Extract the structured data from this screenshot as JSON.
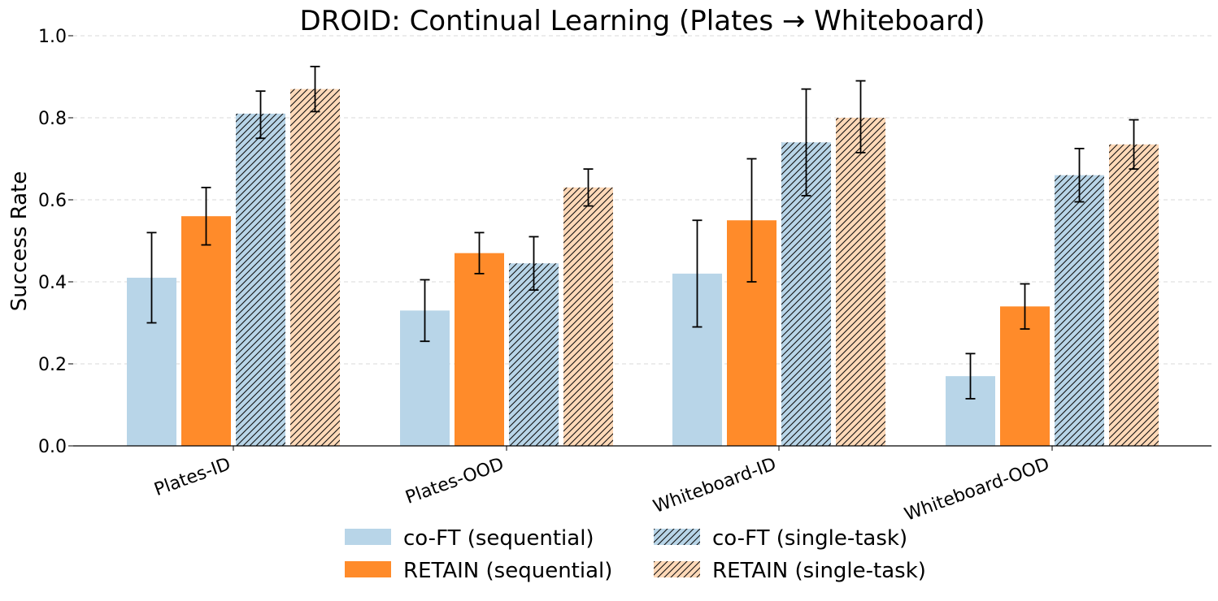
{
  "chart_data": {
    "type": "bar",
    "title": "DROID: Continual Learning (Plates → Whiteboard)",
    "xlabel": "",
    "ylabel": "Success Rate",
    "ylim": [
      0,
      1.0
    ],
    "yticks": [
      "0.0",
      "0.2",
      "0.4",
      "0.6",
      "0.8",
      "1.0"
    ],
    "grid": "horizontal dashed",
    "legend_position": "bottom-center",
    "categories": [
      "Plates-ID",
      "Plates-OOD",
      "Whiteboard-ID",
      "Whiteboard-OOD"
    ],
    "series": [
      {
        "name": "co-FT (sequential)",
        "color": "#b8d5e8",
        "hatched": false,
        "values": [
          0.41,
          0.33,
          0.42,
          0.17
        ],
        "err_low": [
          0.3,
          0.255,
          0.29,
          0.115
        ],
        "err_high": [
          0.52,
          0.405,
          0.55,
          0.225
        ]
      },
      {
        "name": "RETAIN (sequential)",
        "color": "#ff8b2a",
        "hatched": false,
        "values": [
          0.56,
          0.47,
          0.55,
          0.34
        ],
        "err_low": [
          0.49,
          0.42,
          0.4,
          0.285
        ],
        "err_high": [
          0.63,
          0.52,
          0.7,
          0.395
        ]
      },
      {
        "name": "co-FT (single-task)",
        "color": "#b8d5e8",
        "hatched": true,
        "values": [
          0.81,
          0.445,
          0.74,
          0.66
        ],
        "err_low": [
          0.75,
          0.38,
          0.61,
          0.595
        ],
        "err_high": [
          0.865,
          0.51,
          0.87,
          0.725
        ]
      },
      {
        "name": "RETAIN (single-task)",
        "color": "#ffd9b8",
        "hatched": true,
        "values": [
          0.87,
          0.63,
          0.8,
          0.735
        ],
        "err_low": [
          0.815,
          0.585,
          0.715,
          0.675
        ],
        "err_high": [
          0.925,
          0.675,
          0.89,
          0.795
        ]
      }
    ]
  }
}
